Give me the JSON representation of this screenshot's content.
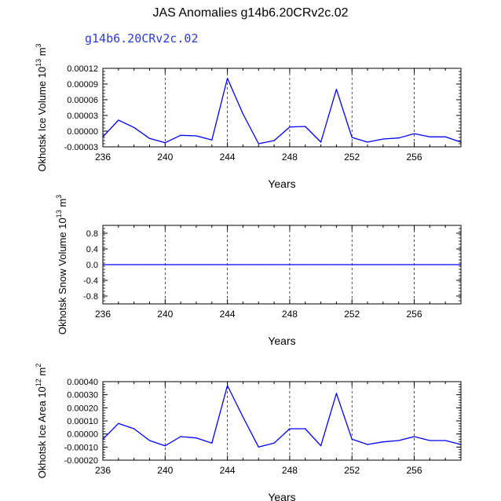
{
  "page": {
    "title": "JAS Anomalies g14b6.20CRv2c.02",
    "subtitle": "g14b6.20CRv2c.02",
    "subtitle_color": "#2b3bd9",
    "line_color": "#0000ff"
  },
  "chart_data": [
    {
      "type": "line",
      "xlabel": "Years",
      "ylabel": "Okhotsk Ice Volume 10^13 m^3",
      "ylabel_base": "Okhotsk Ice Volume 10",
      "ylabel_exp": "13",
      "ylabel_unit": " m",
      "ylabel_unit_exp": "3",
      "xlim": [
        236,
        259
      ],
      "ylim": [
        -3e-05,
        0.00012
      ],
      "xticks": [
        236,
        240,
        244,
        248,
        252,
        256
      ],
      "yticks": [
        -3e-05,
        0.0,
        3e-05,
        6e-05,
        9e-05,
        0.00012
      ],
      "ytick_labels": [
        "-0.00003",
        "0.00000",
        "0.00003",
        "0.00006",
        "0.00009",
        "0.00012"
      ],
      "x": [
        236,
        237,
        238,
        239,
        240,
        241,
        242,
        243,
        244,
        245,
        246,
        247,
        248,
        249,
        250,
        251,
        252,
        253,
        254,
        255,
        256,
        257,
        258,
        259
      ],
      "series": [
        {
          "values": [
            -1.1e-05,
            2.1e-05,
            7e-06,
            -1.4e-05,
            -2.2e-05,
            -8e-06,
            -9e-06,
            -1.7e-05,
            0.000101,
            3.3e-05,
            -2.4e-05,
            -1.8e-05,
            8e-06,
            9e-06,
            -2.1e-05,
            8e-05,
            -1.2e-05,
            -2.1e-05,
            -1.5e-05,
            -1.3e-05,
            -5e-06,
            -1.1e-05,
            -1.1e-05,
            -2.1e-05
          ]
        }
      ]
    },
    {
      "type": "line",
      "xlabel": "Years",
      "ylabel": "Okhotsk Snow Volume 10^13 m^3",
      "ylabel_base": "Okhotsk Snow Volume 10",
      "ylabel_exp": "13",
      "ylabel_unit": " m",
      "ylabel_unit_exp": "3",
      "xlim": [
        236,
        259
      ],
      "ylim": [
        -1.0,
        1.0
      ],
      "xticks": [
        236,
        240,
        244,
        248,
        252,
        256
      ],
      "yticks": [
        -0.8,
        -0.4,
        0.0,
        0.4,
        0.8
      ],
      "ytick_labels": [
        "-0.8",
        "-0.4",
        "0.0",
        "0.4",
        "0.8"
      ],
      "x": [
        236,
        237,
        238,
        239,
        240,
        241,
        242,
        243,
        244,
        245,
        246,
        247,
        248,
        249,
        250,
        251,
        252,
        253,
        254,
        255,
        256,
        257,
        258,
        259
      ],
      "series": [
        {
          "values": [
            0,
            0,
            0,
            0,
            0,
            0,
            0,
            0,
            0,
            0,
            0,
            0,
            0,
            0,
            0,
            0,
            0,
            0,
            0,
            0,
            0,
            0,
            0,
            0
          ]
        }
      ]
    },
    {
      "type": "line",
      "xlabel": "Years",
      "ylabel": "Okhotsk Ice Area 10^12 m^2",
      "ylabel_base": "Okhotsk Ice Area 10",
      "ylabel_exp": "12",
      "ylabel_unit": " m",
      "ylabel_unit_exp": "2",
      "xlim": [
        236,
        259
      ],
      "ylim": [
        -0.0002,
        0.0004
      ],
      "xticks": [
        236,
        240,
        244,
        248,
        252,
        256
      ],
      "yticks": [
        -0.0002,
        -0.0001,
        0.0,
        0.0001,
        0.0002,
        0.0003,
        0.0004
      ],
      "ytick_labels": [
        "-0.00020",
        "-0.00010",
        "0.00000",
        "0.00010",
        "0.00020",
        "0.00030",
        "0.00040"
      ],
      "x": [
        236,
        237,
        238,
        239,
        240,
        241,
        242,
        243,
        244,
        245,
        246,
        247,
        248,
        249,
        250,
        251,
        252,
        253,
        254,
        255,
        256,
        257,
        258,
        259
      ],
      "series": [
        {
          "values": [
            -4e-05,
            8e-05,
            4e-05,
            -5e-05,
            -9e-05,
            -2e-05,
            -3e-05,
            -7e-05,
            0.00037,
            0.00013,
            -0.0001,
            -7e-05,
            4e-05,
            4e-05,
            -9e-05,
            0.00031,
            -4e-05,
            -8e-05,
            -6e-05,
            -5e-05,
            -2e-05,
            -5e-05,
            -5e-05,
            -8e-05
          ]
        }
      ]
    }
  ]
}
